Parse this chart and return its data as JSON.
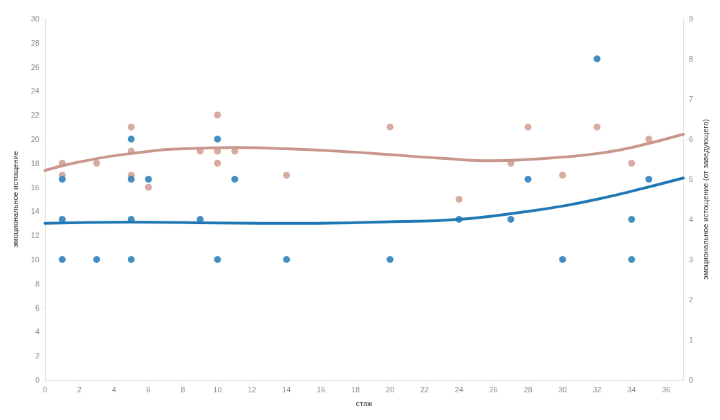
{
  "chart_data": {
    "type": "scatter",
    "xlabel": "стаж",
    "ylabel": "эмоциональное истощение",
    "y2label": "эмоциональное истощение (от заведующего)",
    "xlim": [
      0,
      37
    ],
    "xticks": [
      0,
      2,
      4,
      6,
      8,
      10,
      12,
      14,
      16,
      18,
      20,
      22,
      24,
      26,
      28,
      30,
      32,
      34,
      36
    ],
    "ylim": [
      0,
      30
    ],
    "yticks": [
      0,
      2,
      4,
      6,
      8,
      10,
      12,
      14,
      16,
      18,
      20,
      22,
      24,
      26,
      28,
      30
    ],
    "y2lim": [
      0,
      9
    ],
    "y2ticks": [
      0,
      1,
      2,
      3,
      4,
      5,
      6,
      7,
      8,
      9
    ],
    "grid": false,
    "marker": "circle",
    "series": [
      {
        "color": "#d4a69b",
        "x": [
          1,
          1,
          3,
          5,
          5,
          5,
          6,
          9,
          10,
          10,
          10,
          11,
          14,
          20,
          24,
          27,
          28,
          30,
          32,
          34,
          35
        ],
        "values": [
          18,
          17,
          18,
          21,
          19,
          17,
          16,
          19,
          22,
          19,
          18,
          19,
          17,
          21,
          15,
          18,
          21,
          17,
          21,
          18,
          20
        ]
      },
      {
        "axis": "y2",
        "color": "#3a87c0",
        "x": [
          1,
          1,
          1,
          3,
          5,
          5,
          5,
          5,
          6,
          9,
          10,
          10,
          11,
          14,
          20,
          24,
          27,
          28,
          30,
          32,
          34,
          34,
          35
        ],
        "values": [
          5,
          4,
          3,
          3,
          6,
          5,
          4,
          3,
          5,
          4,
          6,
          3,
          5,
          3,
          3,
          4,
          4,
          5,
          3,
          8,
          4,
          3,
          5
        ]
      },
      {
        "type": "line",
        "color": "#c8968c",
        "marker": "none",
        "x": [
          0,
          2,
          5,
          8,
          11,
          14,
          17,
          20,
          23,
          26,
          28,
          30,
          32,
          34,
          37
        ],
        "values": [
          17.4,
          18.1,
          18.8,
          19.2,
          19.3,
          19.2,
          19.0,
          18.7,
          18.4,
          18.2,
          18.3,
          18.5,
          18.8,
          19.3,
          20.4
        ]
      },
      {
        "type": "line",
        "axis": "y2",
        "color": "#1f77b4",
        "marker": "none",
        "x": [
          0,
          5,
          10,
          15,
          20,
          24,
          28,
          30,
          32,
          34,
          37
        ],
        "values": [
          3.9,
          3.93,
          3.91,
          3.9,
          3.94,
          4.0,
          4.2,
          4.33,
          4.5,
          4.7,
          5.03
        ]
      }
    ]
  }
}
